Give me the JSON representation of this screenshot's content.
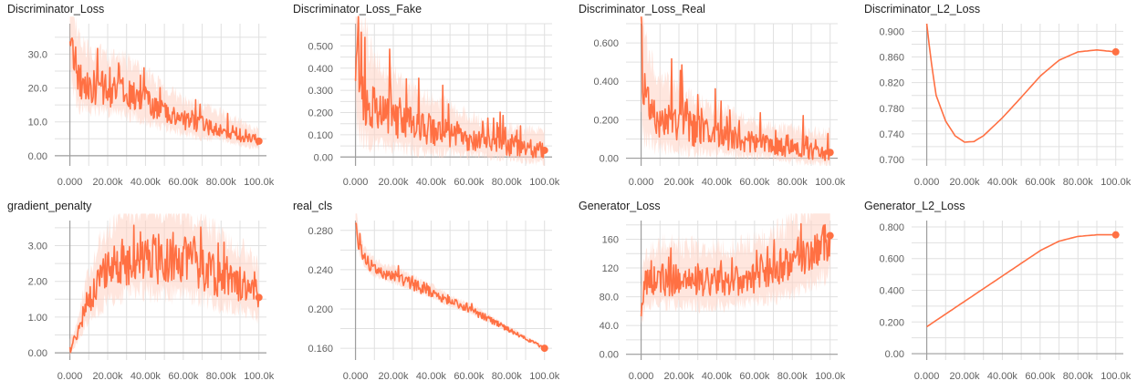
{
  "colors": {
    "line": "#ff7043",
    "band": "#ffd2c2",
    "grid": "#e0e0e0",
    "axis": "#9e9e9e",
    "text": "#616161"
  },
  "chart_data": [
    {
      "type": "line",
      "title": "Discriminator_Loss",
      "xlabel": "",
      "ylabel": "",
      "xlim": [
        -8000,
        104000
      ],
      "ylim": [
        -3,
        39
      ],
      "x_ticks": [
        0,
        20000,
        40000,
        60000,
        80000,
        100000
      ],
      "x_tick_labels": [
        "0.000",
        "20.00k",
        "40.00k",
        "60.00k",
        "80.00k",
        "100.0k"
      ],
      "y_ticks": [
        0,
        10,
        20,
        30
      ],
      "y_tick_labels": [
        "0.00",
        "10.0",
        "20.0",
        "30.0"
      ],
      "grid": true,
      "legend": "none",
      "noise": 0.22,
      "spike": 0.5,
      "band": 0.4,
      "series": [
        {
          "x": [
            0,
            2000,
            5000,
            10000,
            20000,
            30000,
            40000,
            50000,
            60000,
            70000,
            80000,
            90000,
            100000
          ],
          "y": [
            39,
            28,
            22,
            20.5,
            19.5,
            18.5,
            16,
            13,
            10.5,
            9,
            8,
            6,
            4.3
          ]
        }
      ]
    },
    {
      "type": "line",
      "title": "Discriminator_Loss_Fake",
      "xlabel": "",
      "ylabel": "",
      "xlim": [
        -8000,
        104000
      ],
      "ylim": [
        -0.04,
        0.6
      ],
      "x_ticks": [
        0,
        20000,
        40000,
        60000,
        80000,
        100000
      ],
      "x_tick_labels": [
        "0.000",
        "20.00k",
        "40.00k",
        "60.00k",
        "80.00k",
        "100.0k"
      ],
      "y_ticks": [
        0,
        0.1,
        0.2,
        0.3,
        0.4,
        0.5
      ],
      "y_tick_labels": [
        "0.00",
        "0.100",
        "0.200",
        "0.300",
        "0.400",
        "0.500"
      ],
      "grid": true,
      "legend": "none",
      "noise": 0.45,
      "spike": 1.3,
      "band": 0.8,
      "series": [
        {
          "x": [
            0,
            2000,
            10000,
            20000,
            30000,
            40000,
            50000,
            60000,
            70000,
            80000,
            90000,
            100000
          ],
          "y": [
            0.6,
            0.33,
            0.21,
            0.17,
            0.14,
            0.12,
            0.1,
            0.08,
            0.06,
            0.05,
            0.04,
            0.03
          ]
        }
      ]
    },
    {
      "type": "line",
      "title": "Discriminator_Loss_Real",
      "xlabel": "",
      "ylabel": "",
      "xlim": [
        -8000,
        104000
      ],
      "ylim": [
        -0.04,
        0.7
      ],
      "x_ticks": [
        0,
        20000,
        40000,
        60000,
        80000,
        100000
      ],
      "x_tick_labels": [
        "0.000",
        "20.00k",
        "40.00k",
        "60.00k",
        "80.00k",
        "100.0k"
      ],
      "y_ticks": [
        0,
        0.2,
        0.4,
        0.6
      ],
      "y_tick_labels": [
        "0.00",
        "0.200",
        "0.400",
        "0.600"
      ],
      "grid": true,
      "legend": "none",
      "noise": 0.45,
      "spike": 1.3,
      "band": 0.8,
      "series": [
        {
          "x": [
            0,
            2000,
            10000,
            20000,
            30000,
            40000,
            50000,
            60000,
            70000,
            80000,
            90000,
            100000
          ],
          "y": [
            0.7,
            0.3,
            0.2,
            0.17,
            0.14,
            0.12,
            0.1,
            0.08,
            0.07,
            0.05,
            0.04,
            0.03
          ]
        }
      ]
    },
    {
      "type": "line",
      "title": "Discriminator_L2_Loss",
      "xlabel": "",
      "ylabel": "",
      "xlim": [
        -8000,
        104000
      ],
      "ylim": [
        0.69,
        0.912
      ],
      "x_ticks": [
        0,
        20000,
        40000,
        60000,
        80000,
        100000
      ],
      "x_tick_labels": [
        "0.000",
        "20.00k",
        "40.00k",
        "60.00k",
        "80.00k",
        "100.0k"
      ],
      "y_ticks": [
        0.7,
        0.74,
        0.78,
        0.82,
        0.86,
        0.9
      ],
      "y_tick_labels": [
        "0.700",
        "0.740",
        "0.780",
        "0.820",
        "0.860",
        "0.900"
      ],
      "grid": true,
      "legend": "none",
      "noise": 0,
      "spike": 0,
      "band": 0,
      "series": [
        {
          "x": [
            0,
            2000,
            5000,
            10000,
            15000,
            20000,
            25000,
            30000,
            40000,
            50000,
            60000,
            70000,
            80000,
            90000,
            100000
          ],
          "y": [
            0.912,
            0.86,
            0.8,
            0.76,
            0.737,
            0.727,
            0.728,
            0.737,
            0.765,
            0.797,
            0.83,
            0.855,
            0.868,
            0.871,
            0.868
          ]
        }
      ]
    },
    {
      "type": "line",
      "title": "gradient_penalty",
      "xlabel": "",
      "ylabel": "",
      "xlim": [
        -8000,
        104000
      ],
      "ylim": [
        -0.2,
        3.7
      ],
      "x_ticks": [
        0,
        20000,
        40000,
        60000,
        80000,
        100000
      ],
      "x_tick_labels": [
        "0.000",
        "20.00k",
        "40.00k",
        "60.00k",
        "80.00k",
        "100.0k"
      ],
      "y_ticks": [
        0,
        1,
        2,
        3
      ],
      "y_tick_labels": [
        "0.00",
        "1.00",
        "2.00",
        "3.00"
      ],
      "grid": true,
      "legend": "none",
      "noise": 0.25,
      "spike": 0.3,
      "band": 0.45,
      "series": [
        {
          "x": [
            0,
            2000,
            5000,
            10000,
            20000,
            30000,
            40000,
            50000,
            60000,
            70000,
            80000,
            90000,
            100000
          ],
          "y": [
            0.1,
            0.3,
            0.7,
            1.5,
            2.3,
            2.6,
            2.7,
            2.6,
            2.6,
            2.4,
            2.1,
            1.9,
            1.55
          ]
        }
      ]
    },
    {
      "type": "line",
      "title": "real_cls",
      "xlabel": "",
      "ylabel": "",
      "xlim": [
        -8000,
        104000
      ],
      "ylim": [
        0.148,
        0.29
      ],
      "x_ticks": [
        0,
        20000,
        40000,
        60000,
        80000,
        100000
      ],
      "x_tick_labels": [
        "0.000",
        "20.00k",
        "40.00k",
        "60.00k",
        "80.00k",
        "100.0k"
      ],
      "y_ticks": [
        0.16,
        0.2,
        0.24,
        0.28
      ],
      "y_tick_labels": [
        "0.160",
        "0.200",
        "0.240",
        "0.280"
      ],
      "grid": true,
      "legend": "none",
      "noise": 0.08,
      "spike": 0.1,
      "band": 0.1,
      "series": [
        {
          "x": [
            0,
            2000,
            5000,
            10000,
            20000,
            30000,
            40000,
            50000,
            60000,
            70000,
            80000,
            90000,
            100000
          ],
          "y": [
            0.29,
            0.265,
            0.25,
            0.24,
            0.233,
            0.225,
            0.217,
            0.207,
            0.2,
            0.19,
            0.18,
            0.17,
            0.16
          ]
        }
      ]
    },
    {
      "type": "line",
      "title": "Generator_Loss",
      "xlabel": "",
      "ylabel": "",
      "xlim": [
        -8000,
        104000
      ],
      "ylim": [
        -8,
        186
      ],
      "x_ticks": [
        0,
        20000,
        40000,
        60000,
        80000,
        100000
      ],
      "x_tick_labels": [
        "0.000",
        "20.00k",
        "40.00k",
        "60.00k",
        "80.00k",
        "100.0k"
      ],
      "y_ticks": [
        0,
        40,
        80,
        120,
        160
      ],
      "y_tick_labels": [
        "0.00",
        "40.0",
        "80.0",
        "120",
        "160"
      ],
      "grid": true,
      "legend": "none",
      "noise": 0.2,
      "spike": 0.25,
      "band": 0.4,
      "series": [
        {
          "x": [
            0,
            2000,
            10000,
            20000,
            30000,
            40000,
            50000,
            60000,
            70000,
            80000,
            90000,
            100000
          ],
          "y": [
            60,
            95,
            105,
            102,
            100,
            100,
            102,
            107,
            115,
            125,
            140,
            165
          ]
        }
      ]
    },
    {
      "type": "line",
      "title": "Generator_L2_Loss",
      "xlabel": "",
      "ylabel": "",
      "xlim": [
        -8000,
        104000
      ],
      "ylim": [
        -0.04,
        0.84
      ],
      "x_ticks": [
        0,
        20000,
        40000,
        60000,
        80000,
        100000
      ],
      "x_tick_labels": [
        "0.000",
        "20.00k",
        "40.00k",
        "60.00k",
        "80.00k",
        "100.0k"
      ],
      "y_ticks": [
        0,
        0.2,
        0.4,
        0.6,
        0.8
      ],
      "y_tick_labels": [
        "0.00",
        "0.200",
        "0.400",
        "0.600",
        "0.800"
      ],
      "grid": true,
      "legend": "none",
      "noise": 0,
      "spike": 0,
      "band": 0,
      "series": [
        {
          "x": [
            0,
            10000,
            20000,
            30000,
            40000,
            50000,
            60000,
            70000,
            80000,
            90000,
            100000
          ],
          "y": [
            0.17,
            0.25,
            0.33,
            0.41,
            0.49,
            0.57,
            0.65,
            0.71,
            0.74,
            0.75,
            0.75
          ]
        }
      ]
    }
  ]
}
